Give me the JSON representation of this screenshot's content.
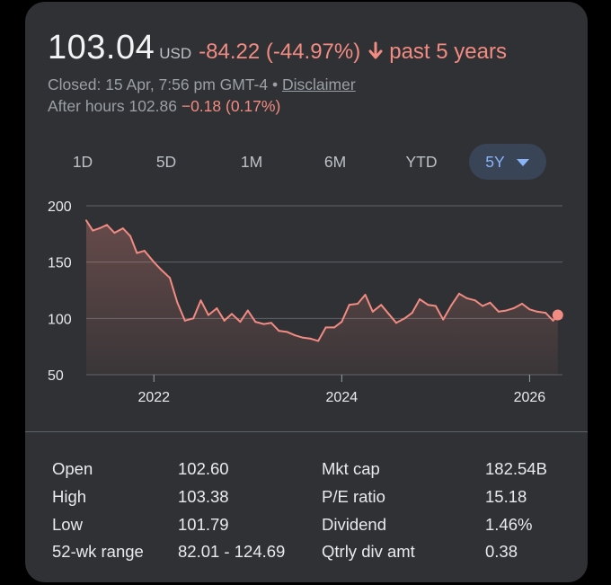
{
  "quote": {
    "price": "103.04",
    "currency": "USD",
    "change": "-84.22 (-44.97%)",
    "direction_icon": "arrow-down-icon",
    "period": "past 5 years",
    "closed_text": "Closed: 15 Apr, 7:56 pm GMT-4 •",
    "disclaimer": "Disclaimer",
    "after_hours_label": "After hours 102.86",
    "after_hours_change": "−0.18 (0.17%)"
  },
  "tabs": [
    {
      "label": "1D"
    },
    {
      "label": "5D"
    },
    {
      "label": "1M"
    },
    {
      "label": "6M"
    },
    {
      "label": "YTD"
    },
    {
      "label": "5Y",
      "active": true,
      "icon": "caret-down-icon"
    }
  ],
  "colors": {
    "negative": "#f28b82",
    "line": "#f28b82",
    "active_tab_bg": "#394457",
    "active_tab_text": "#8ab4f8",
    "card_bg": "#303134"
  },
  "chart_data": {
    "type": "area",
    "x_unit": "year",
    "x": [
      2021.28,
      2021.35,
      2021.42,
      2021.5,
      2021.58,
      2021.67,
      2021.75,
      2021.82,
      2021.9,
      2022.0,
      2022.08,
      2022.17,
      2022.25,
      2022.33,
      2022.42,
      2022.5,
      2022.58,
      2022.67,
      2022.75,
      2022.83,
      2022.92,
      2023.0,
      2023.08,
      2023.17,
      2023.25,
      2023.33,
      2023.42,
      2023.5,
      2023.58,
      2023.67,
      2023.75,
      2023.83,
      2023.92,
      2024.0,
      2024.08,
      2024.17,
      2024.25,
      2024.33,
      2024.42,
      2024.5,
      2024.58,
      2024.67,
      2024.75,
      2024.83,
      2024.92,
      2025.0,
      2025.08,
      2025.17,
      2025.25,
      2025.33,
      2025.42,
      2025.5,
      2025.58,
      2025.67,
      2025.75,
      2025.83,
      2025.92,
      2026.0,
      2026.08,
      2026.17,
      2026.25,
      2026.3
    ],
    "y": [
      187,
      178,
      180,
      183,
      176,
      180,
      173,
      158,
      160,
      150,
      143,
      136,
      114,
      98,
      100,
      116,
      103,
      109,
      98,
      104,
      97,
      107,
      97,
      95,
      96,
      89,
      88,
      85,
      83,
      82,
      80,
      92,
      92,
      97,
      112,
      113,
      121,
      106,
      112,
      104,
      96,
      100,
      105,
      117,
      112,
      111,
      99,
      112,
      122,
      118,
      116,
      111,
      114,
      106,
      107,
      109,
      113,
      108,
      106,
      105,
      98,
      103.04
    ],
    "title": "",
    "xlabel": "",
    "ylabel": "",
    "y_ticks": [
      200,
      150,
      100,
      50
    ],
    "x_ticks": [
      "2022",
      "2024",
      "2026"
    ],
    "x_tick_values": [
      2022,
      2024,
      2026
    ],
    "xlim": [
      2021.28,
      2026.35
    ],
    "ylim": [
      50,
      200
    ],
    "grid": true,
    "legend": "none"
  },
  "stats": [
    {
      "label": "Open",
      "value": "102.60"
    },
    {
      "label": "High",
      "value": "103.38"
    },
    {
      "label": "Low",
      "value": "101.79"
    },
    {
      "label": "52-wk range",
      "value": "82.01 - 124.69"
    },
    {
      "label": "Mkt cap",
      "value": "182.54B"
    },
    {
      "label": "P/E ratio",
      "value": "15.18"
    },
    {
      "label": "Dividend",
      "value": "1.46%"
    },
    {
      "label": "Qtrly div amt",
      "value": "0.38"
    }
  ]
}
